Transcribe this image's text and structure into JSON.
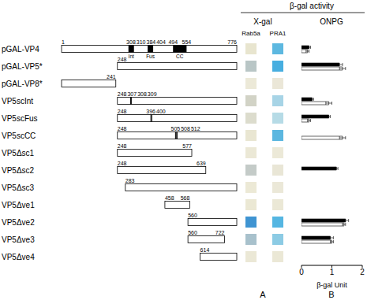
{
  "chart_data": {
    "type": "bar",
    "orientation": "horizontal",
    "categories": [
      "pGAL-VP4",
      "pGAL-VP5*",
      "pGAL-VP8*",
      "VP5scInt",
      "VP5scFus",
      "VP5scCC",
      "VP5Δsc1",
      "VP5Δsc2",
      "VP5Δsc3",
      "VP5Δve1",
      "VP5Δve2",
      "VP5Δve3",
      "VP5Δve4"
    ],
    "series": [
      {
        "name": "Rab5a",
        "color": "#000000",
        "values": [
          0.25,
          1.25,
          0,
          0.35,
          0.9,
          0,
          0,
          1.15,
          0,
          0,
          1.45,
          0.95,
          0
        ],
        "errors": [
          0.05,
          0.1,
          0,
          0.05,
          0.05,
          0,
          0,
          0.05,
          0,
          0,
          0.1,
          0.1,
          0
        ]
      },
      {
        "name": "PRA1",
        "color": "#ffffff",
        "values": [
          0.2,
          1.35,
          0,
          0.9,
          0.25,
          1.35,
          0,
          0,
          0,
          0,
          1.4,
          1.0,
          0
        ],
        "errors": [
          0.05,
          0.1,
          0,
          0.1,
          0.05,
          0.1,
          0,
          0,
          0,
          0,
          0.05,
          0.05,
          0
        ]
      }
    ],
    "x_label": "β-gal Unit",
    "xlim": [
      0,
      2
    ],
    "xticks": [
      0,
      1,
      2
    ],
    "grid": false
  },
  "diagram": {
    "header": "β-gal activity",
    "methods": [
      "X-gal",
      "ONPG"
    ],
    "panels": [
      "A",
      "B"
    ],
    "constructs": [
      {
        "start": 1,
        "end": 776,
        "numbers": [
          1,
          308,
          310,
          384,
          404,
          494,
          554,
          776
        ],
        "features": [
          {
            "label": "Int",
            "start": 308,
            "end": 310
          },
          {
            "label": "Fus",
            "start": 384,
            "end": 404
          },
          {
            "label": "CC",
            "start": 494,
            "end": 554
          }
        ],
        "marks": []
      },
      {
        "start": 248,
        "end": 776,
        "numbers": [
          248
        ],
        "features": [],
        "marks": []
      },
      {
        "start": 1,
        "end": 241,
        "numbers": [
          241
        ],
        "features": [],
        "marks": []
      },
      {
        "start": 248,
        "end": 776,
        "numbers": [
          248,
          307,
          308,
          309
        ],
        "features": [],
        "marks": [
          307,
          308,
          309
        ]
      },
      {
        "start": 248,
        "end": 776,
        "numbers": [
          248,
          396,
          400
        ],
        "features": [],
        "marks": [
          396,
          400
        ]
      },
      {
        "start": 248,
        "end": 776,
        "numbers": [
          248,
          505,
          508,
          512
        ],
        "features": [],
        "marks": [
          505,
          508,
          512
        ]
      },
      {
        "start": 248,
        "end": 577,
        "numbers": [
          248,
          577
        ],
        "features": [],
        "marks": []
      },
      {
        "start": 248,
        "end": 639,
        "numbers": [
          248,
          639
        ],
        "features": [],
        "marks": []
      },
      {
        "start": 283,
        "end": 776,
        "numbers": [
          283
        ],
        "features": [],
        "marks": []
      },
      {
        "start": 458,
        "end": 568,
        "numbers": [
          458,
          568
        ],
        "features": [],
        "marks": []
      },
      {
        "start": 560,
        "end": 776,
        "numbers": [
          560
        ],
        "features": [],
        "marks": []
      },
      {
        "start": 560,
        "end": 722,
        "numbers": [
          560,
          722
        ],
        "features": [],
        "marks": []
      },
      {
        "start": 614,
        "end": 776,
        "numbers": [
          614
        ],
        "features": [],
        "marks": []
      }
    ],
    "xgal": [
      [
        "#e8e5cf",
        "#5db8e0"
      ],
      [
        "#b9c6c6",
        "#47aee0"
      ],
      [
        "#ece9d8",
        "#ebe7d8"
      ],
      [
        "#d2d3c6",
        "#a7d4e6"
      ],
      [
        "#dcdccd",
        "#b6dbe6"
      ],
      [
        "#e9e6d2",
        "#5cb7e0"
      ],
      [
        "#ebe8d6",
        "#ece9d8"
      ],
      [
        "#c4cbc8",
        "#e9e6d6"
      ],
      [
        "#ece9d6",
        "#ebe8d8"
      ],
      [
        "#ebe8d4",
        "#ebe8d6"
      ],
      [
        "#3f94d2",
        "#55b6e2"
      ],
      [
        "#a8c1cc",
        "#8ccbe4"
      ],
      [
        "#ebe8d6",
        "#ebe8d6"
      ]
    ]
  }
}
